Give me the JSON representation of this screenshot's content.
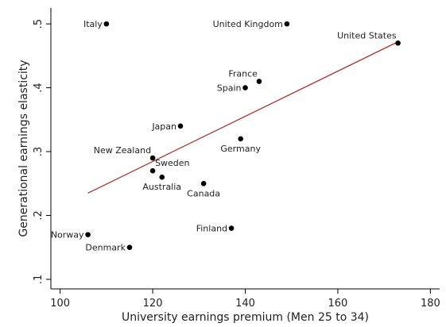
{
  "chart_data": {
    "type": "scatter",
    "xlabel": "University earnings premium (Men 25 to 34)",
    "ylabel": "Generational earnings elasticity",
    "xlim": [
      98,
      182
    ],
    "ylim": [
      0.085,
      0.525
    ],
    "xticks": [
      100,
      120,
      140,
      160,
      180
    ],
    "yticks": [
      0.1,
      0.2,
      0.3,
      0.4,
      0.5
    ],
    "xtick_labels": [
      "100",
      "120",
      "140",
      "160",
      "180"
    ],
    "ytick_labels": [
      ".1",
      ".2",
      ".3",
      ".4",
      ".5"
    ],
    "grid": false,
    "points": [
      {
        "label": "Italy",
        "x": 110,
        "y": 0.5,
        "anchor": "left"
      },
      {
        "label": "United Kingdom",
        "x": 149,
        "y": 0.5,
        "anchor": "left"
      },
      {
        "label": "United States",
        "x": 173,
        "y": 0.47,
        "anchor": "above-left"
      },
      {
        "label": "France",
        "x": 143,
        "y": 0.41,
        "anchor": "above-left"
      },
      {
        "label": "Spain",
        "x": 140,
        "y": 0.4,
        "anchor": "left"
      },
      {
        "label": "Japan",
        "x": 126,
        "y": 0.34,
        "anchor": "left"
      },
      {
        "label": "Germany",
        "x": 139,
        "y": 0.32,
        "anchor": "below"
      },
      {
        "label": "New Zealand",
        "x": 120,
        "y": 0.29,
        "anchor": "above-left"
      },
      {
        "label": "Sweden",
        "x": 120,
        "y": 0.27,
        "anchor": "above-right"
      },
      {
        "label": "Australia",
        "x": 122,
        "y": 0.26,
        "anchor": "below"
      },
      {
        "label": "Canada",
        "x": 131,
        "y": 0.25,
        "anchor": "below"
      },
      {
        "label": "Finland",
        "x": 137,
        "y": 0.18,
        "anchor": "left"
      },
      {
        "label": "Norway",
        "x": 106,
        "y": 0.17,
        "anchor": "left"
      },
      {
        "label": "Denmark",
        "x": 115,
        "y": 0.15,
        "anchor": "left"
      }
    ],
    "fit_line": {
      "x1": 106,
      "y1": 0.235,
      "x2": 173,
      "y2": 0.472
    },
    "colors": {
      "points": "#000000",
      "fit_line": "#b03030",
      "axis": "#000000"
    }
  }
}
